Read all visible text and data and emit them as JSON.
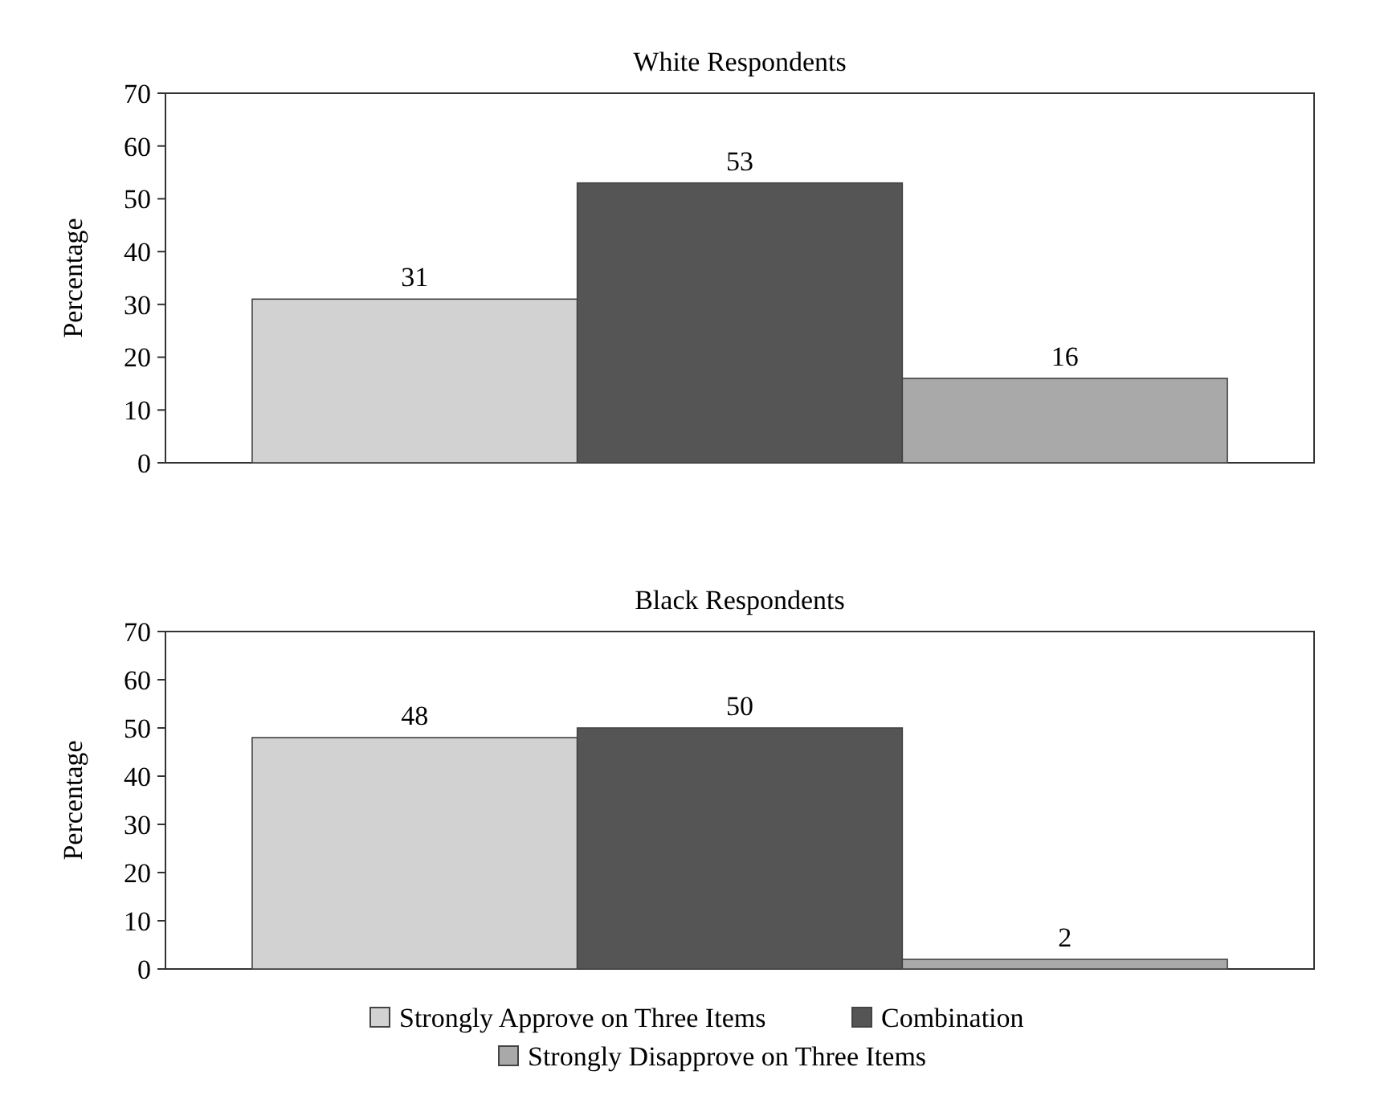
{
  "chart_data": [
    {
      "type": "bar",
      "title": "White Respondents",
      "ylabel": "Percentage",
      "categories": [
        null
      ],
      "ylim": [
        0,
        70
      ],
      "yticks": [
        0,
        10,
        20,
        30,
        40,
        50,
        60,
        70
      ],
      "tick_labels": "y",
      "data_labels": true,
      "grid": false,
      "legend": false,
      "series": [
        {
          "color": "#d2d2d2",
          "values": [
            31
          ]
        },
        {
          "color": "#555555",
          "values": [
            53
          ]
        },
        {
          "color": "#a9a9a9",
          "values": [
            16
          ]
        }
      ]
    },
    {
      "type": "bar",
      "title": "Black Respondents",
      "ylabel": "Percentage",
      "categories": [
        null
      ],
      "ylim": [
        0,
        70
      ],
      "yticks": [
        0,
        10,
        20,
        30,
        40,
        50,
        60,
        70
      ],
      "tick_labels": "y",
      "data_labels": true,
      "grid": false,
      "legend": "bottom",
      "series": [
        {
          "name": "Strongly Approve on Three Items",
          "color": "#d2d2d2",
          "values": [
            48
          ]
        },
        {
          "name": "Combination",
          "color": "#555555",
          "values": [
            50
          ]
        },
        {
          "name": "Strongly Disapprove on Three Items",
          "color": "#a9a9a9",
          "values": [
            2
          ]
        }
      ]
    }
  ]
}
